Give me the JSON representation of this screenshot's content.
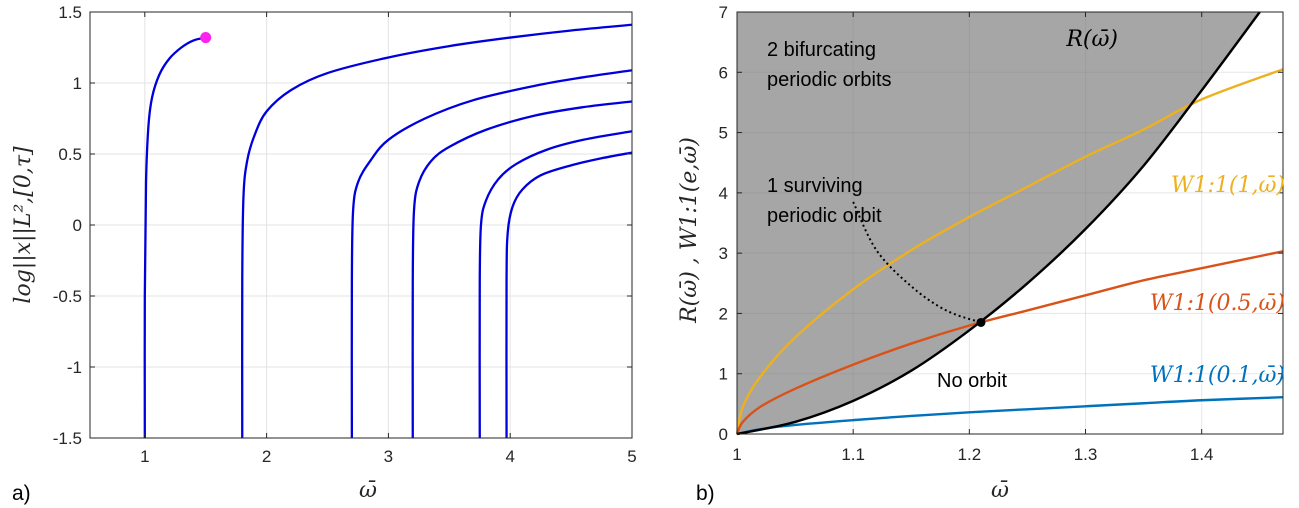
{
  "panel_labels": {
    "a": "a)",
    "b": "b)"
  },
  "annotations": {
    "bifurcating_line1": "2 bifurcating",
    "bifurcating_line2": "periodic orbits",
    "surviving_line1": "1 surviving",
    "surviving_line2": "periodic orbit",
    "no_orbit": "No orbit"
  },
  "colors": {
    "panel_a_curves": "#0000dd",
    "start_marker": "#ff22ee",
    "black_curve": "#000000",
    "W_e1": "#EDB120",
    "W_e05": "#D95319",
    "W_e01": "#0072BD",
    "shade": "#a6a6a6",
    "grid": "#e3e3e3"
  },
  "chart_data": [
    {
      "type": "line",
      "panel": "a",
      "title": "",
      "xlabel": "ω̄",
      "ylabel": "log||x||L²,[0,τ]",
      "xlim": [
        0.55,
        5
      ],
      "ylim": [
        -1.5,
        1.5
      ],
      "xticks": [
        1,
        2,
        3,
        4,
        5
      ],
      "yticks": [
        -1.5,
        -1,
        -0.5,
        0,
        0.5,
        1,
        1.5
      ],
      "ytick_labels": [
        "-1.5",
        "-1",
        "-0.5",
        "0",
        "0.5",
        "1",
        "1.5"
      ],
      "grid": true,
      "marker": {
        "x": 1.5,
        "y": 1.32,
        "color": "#ff22ee"
      },
      "series": [
        {
          "x": [
            1.0,
            1.0,
            1.01,
            1.03,
            1.06,
            1.12,
            1.2,
            1.3,
            1.4,
            1.5
          ],
          "y": [
            -1.5,
            -0.5,
            0.3,
            0.7,
            0.9,
            1.06,
            1.17,
            1.25,
            1.3,
            1.32
          ]
        },
        {
          "x": [
            1.8,
            1.8,
            1.81,
            1.84,
            1.9,
            2.0,
            2.2,
            2.5,
            3.0,
            3.5,
            4.0,
            4.5,
            5.0
          ],
          "y": [
            -1.5,
            -0.4,
            0.2,
            0.45,
            0.63,
            0.8,
            0.95,
            1.07,
            1.18,
            1.26,
            1.32,
            1.37,
            1.41
          ]
        },
        {
          "x": [
            2.7,
            2.7,
            2.71,
            2.75,
            2.85,
            3.0,
            3.3,
            3.7,
            4.2,
            4.6,
            5.0
          ],
          "y": [
            -1.5,
            -0.4,
            0.1,
            0.3,
            0.45,
            0.6,
            0.75,
            0.88,
            0.98,
            1.04,
            1.09
          ]
        },
        {
          "x": [
            3.2,
            3.2,
            3.21,
            3.25,
            3.35,
            3.5,
            3.8,
            4.2,
            4.6,
            5.0
          ],
          "y": [
            -1.5,
            -0.4,
            0.1,
            0.3,
            0.45,
            0.55,
            0.67,
            0.77,
            0.83,
            0.87
          ]
        },
        {
          "x": [
            3.75,
            3.75,
            3.76,
            3.8,
            3.9,
            4.05,
            4.3,
            4.6,
            5.0
          ],
          "y": [
            -1.5,
            -0.4,
            0.0,
            0.17,
            0.32,
            0.43,
            0.53,
            0.6,
            0.66
          ]
        },
        {
          "x": [
            3.97,
            3.97,
            3.98,
            4.02,
            4.1,
            4.25,
            4.5,
            4.75,
            5.0
          ],
          "y": [
            -1.5,
            -0.4,
            -0.05,
            0.13,
            0.25,
            0.35,
            0.42,
            0.47,
            0.51
          ]
        }
      ]
    },
    {
      "type": "line",
      "panel": "b",
      "title": "",
      "xlabel": "ω̄",
      "ylabel": "R(ω̄) , W1:1(e,ω̄)",
      "xlim": [
        1,
        1.47
      ],
      "ylim": [
        0,
        7
      ],
      "xticks": [
        1,
        1.1,
        1.2,
        1.3,
        1.4
      ],
      "xtick_labels": [
        "1",
        "1.1",
        "1.2",
        "1.3",
        "1.4"
      ],
      "yticks": [
        0,
        1,
        2,
        3,
        4,
        5,
        6,
        7
      ],
      "grid": true,
      "shaded_region": "above R(ω̄)",
      "intersection_point": {
        "x": 1.21,
        "y": 1.85
      },
      "series": [
        {
          "name": "R(ω̄)",
          "color": "#000000",
          "x": [
            1.0,
            1.05,
            1.1,
            1.15,
            1.2,
            1.25,
            1.3,
            1.35,
            1.4,
            1.45
          ],
          "y": [
            0.0,
            0.2,
            0.55,
            1.05,
            1.72,
            2.5,
            3.4,
            4.45,
            5.7,
            7.0
          ]
        },
        {
          "name": "W1:1(1,ω̄)",
          "color": "#EDB120",
          "x": [
            1.0,
            1.005,
            1.02,
            1.05,
            1.1,
            1.15,
            1.2,
            1.25,
            1.3,
            1.35,
            1.4,
            1.47
          ],
          "y": [
            0.0,
            0.45,
            0.95,
            1.6,
            2.4,
            3.05,
            3.6,
            4.1,
            4.6,
            5.05,
            5.55,
            6.05
          ]
        },
        {
          "name": "W1:1(0.5,ω̄)",
          "color": "#D95319",
          "x": [
            1.0,
            1.005,
            1.02,
            1.05,
            1.1,
            1.15,
            1.2,
            1.25,
            1.3,
            1.35,
            1.4,
            1.47
          ],
          "y": [
            0.0,
            0.2,
            0.45,
            0.75,
            1.15,
            1.5,
            1.8,
            2.05,
            2.3,
            2.55,
            2.75,
            3.03
          ]
        },
        {
          "name": "W1:1(0.1,ω̄)",
          "color": "#0072BD",
          "x": [
            1.0,
            1.02,
            1.05,
            1.1,
            1.15,
            1.2,
            1.25,
            1.3,
            1.35,
            1.4,
            1.47
          ],
          "y": [
            0.0,
            0.08,
            0.15,
            0.23,
            0.3,
            0.36,
            0.41,
            0.46,
            0.51,
            0.56,
            0.61
          ]
        }
      ],
      "surviving_pointer": {
        "x": [
          1.1,
          1.12,
          1.15,
          1.18,
          1.21
        ],
        "y": [
          3.85,
          3.05,
          2.45,
          2.05,
          1.85
        ]
      }
    }
  ]
}
